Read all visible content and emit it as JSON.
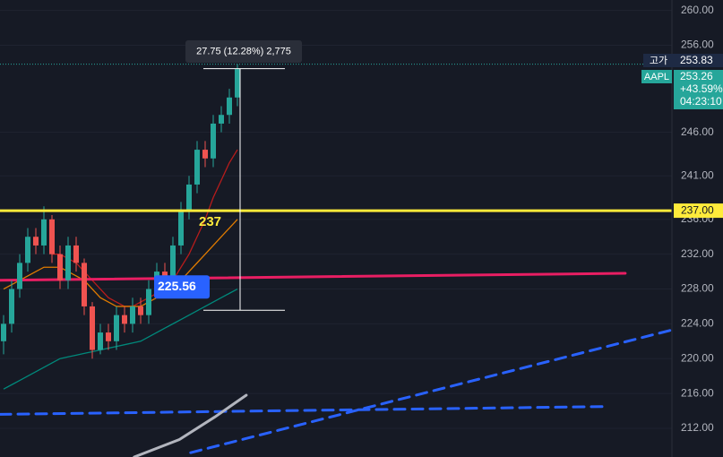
{
  "chart_data": {
    "type": "candlestick",
    "open": [
      222,
      224,
      228,
      231,
      234,
      233,
      236,
      232,
      229,
      233,
      231,
      226,
      221,
      223,
      222,
      225,
      224,
      226,
      225,
      228,
      230,
      229,
      233,
      237,
      240,
      244,
      243,
      247,
      248,
      250
    ],
    "high": [
      225,
      229,
      232,
      235,
      235,
      237.5,
      236.5,
      233,
      234,
      234,
      231.5,
      226.5,
      224,
      224,
      226,
      226,
      227,
      227,
      229,
      231,
      231,
      234,
      238,
      241,
      245,
      245,
      248,
      249,
      251,
      253.83
    ],
    "low": [
      220.5,
      223,
      227,
      230,
      232,
      232,
      231,
      228,
      228,
      230,
      225,
      220,
      220.5,
      221,
      221,
      223,
      223,
      224,
      224,
      227,
      228,
      228,
      232,
      236,
      239,
      242,
      242,
      246,
      247,
      249
    ],
    "close": [
      224,
      228,
      231,
      234,
      233,
      236,
      232,
      229,
      233,
      231,
      226,
      221,
      223,
      222,
      225,
      224,
      226,
      225,
      228,
      230,
      229,
      233,
      237,
      240,
      244,
      243,
      247,
      248,
      250,
      253.26
    ],
    "up_color": "#26a69a",
    "down_color": "#ef5350",
    "series": [
      {
        "color": "#b71c1c",
        "values": [
          null,
          null,
          null,
          null,
          null,
          null,
          232,
          232,
          231.5,
          231,
          230,
          229,
          228,
          227,
          226.5,
          226,
          226,
          226.5,
          227,
          227.5,
          228,
          229,
          230.5,
          232,
          234,
          236,
          238.5,
          240.5,
          242.5,
          244
        ]
      },
      {
        "color": "#e07b00",
        "values": [
          228,
          228.5,
          229,
          229.5,
          230,
          230.5,
          230.5,
          230.5,
          230,
          229.5,
          229,
          228,
          227,
          226.5,
          226,
          226,
          226,
          226,
          226.5,
          227,
          227.5,
          228,
          229,
          230,
          231,
          232,
          233,
          234,
          235,
          236
        ]
      },
      {
        "color": "#00897b",
        "values": [
          216.5,
          217,
          217.5,
          218,
          218.5,
          219,
          219.5,
          220,
          220.2,
          220.4,
          220.6,
          220.8,
          221,
          221.2,
          221.4,
          221.6,
          221.8,
          222,
          222.5,
          223,
          223.5,
          224,
          224.5,
          225,
          225.5,
          226,
          226.5,
          227,
          227.5,
          228
        ]
      }
    ],
    "ylim": [
      208.7,
      261.2
    ],
    "yticks": [
      {
        "value": 260,
        "label": "260.00"
      },
      {
        "value": 256,
        "label": "256.00"
      },
      {
        "value": 246,
        "label": "246.00"
      },
      {
        "value": 241,
        "label": "241.00"
      },
      {
        "value": 236,
        "label": "236.00"
      },
      {
        "value": 232,
        "label": "232.00"
      },
      {
        "value": 228,
        "label": "228.00"
      },
      {
        "value": 224,
        "label": "224.00"
      },
      {
        "value": 220,
        "label": "220.00"
      },
      {
        "value": 216,
        "label": "216.00"
      },
      {
        "value": 212,
        "label": "212.00"
      }
    ],
    "grid": true,
    "horizontal_line": {
      "value": 237,
      "label": "237.00",
      "color": "#ffeb3b"
    },
    "drawings": [
      {
        "color": "#e91e63",
        "dashed": false,
        "points": [
          [
            -0.44,
            229.0
          ],
          [
            77.1,
            229.8
          ]
        ]
      },
      {
        "color": "#2962ff",
        "dashed": true,
        "points": [
          [
            -0.44,
            213.6
          ],
          [
            75.1,
            214.5
          ]
        ]
      },
      {
        "color": "#2962ff",
        "dashed": true,
        "points": [
          [
            23.2,
            209.2
          ],
          [
            82.9,
            223.3
          ]
        ]
      },
      {
        "color": "#b2b5be",
        "dashed": false,
        "points": [
          [
            16.2,
            208.7
          ],
          [
            21.8,
            210.7
          ],
          [
            26.2,
            213.3
          ],
          [
            30.1,
            215.8
          ]
        ]
      }
    ],
    "measure": {
      "from": 225.56,
      "to": 253.31,
      "label": "27.75 (12.28%) 2,775"
    },
    "high_tag": {
      "label": "고가",
      "value": 253.83
    },
    "last_tag": {
      "symbol": "AAPL",
      "change": "+43.59%",
      "countdown": "04:23:10"
    }
  }
}
